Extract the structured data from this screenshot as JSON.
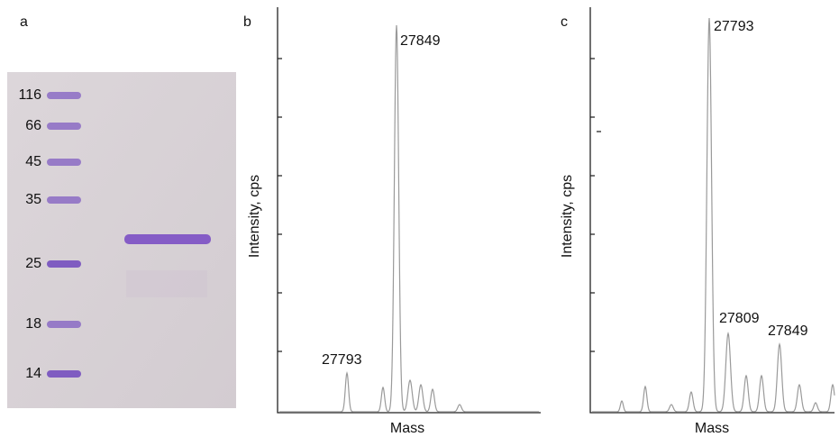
{
  "panels": [
    {
      "label": "a",
      "markers": [
        116,
        66,
        45,
        35,
        25,
        18,
        14
      ]
    },
    {
      "label": "b",
      "y_label": "Intensity, cps",
      "x_label": "Mass",
      "peaks": [
        27793,
        27849
      ]
    },
    {
      "label": "c",
      "y_label": "Intensity, cps",
      "x_label": "Mass",
      "peaks": [
        27793,
        27809,
        27849
      ]
    }
  ]
}
